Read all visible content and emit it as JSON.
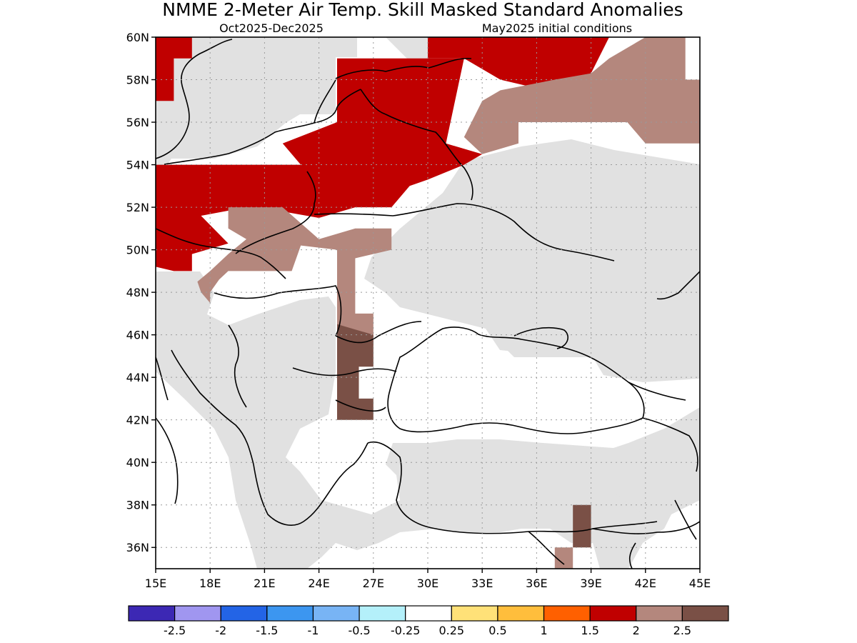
{
  "title": "NMME 2-Meter Air Temp. Skill Masked Standard Anomalies",
  "subtitle_left": "Oct2025-Dec2025",
  "subtitle_right": "May2025 initial conditions",
  "map": {
    "lon_range": [
      15,
      45
    ],
    "lat_range": [
      35,
      60
    ],
    "lat_ticks": [
      {
        "value": 60,
        "label": "60N"
      },
      {
        "value": 58,
        "label": "58N"
      },
      {
        "value": 56,
        "label": "56N"
      },
      {
        "value": 54,
        "label": "54N"
      },
      {
        "value": 52,
        "label": "52N"
      },
      {
        "value": 50,
        "label": "50N"
      },
      {
        "value": 48,
        "label": "48N"
      },
      {
        "value": 46,
        "label": "46N"
      },
      {
        "value": 44,
        "label": "44N"
      },
      {
        "value": 42,
        "label": "42N"
      },
      {
        "value": 40,
        "label": "40N"
      },
      {
        "value": 38,
        "label": "38N"
      },
      {
        "value": 36,
        "label": "36N"
      }
    ],
    "lon_ticks": [
      {
        "value": 15,
        "label": "15E"
      },
      {
        "value": 18,
        "label": "18E"
      },
      {
        "value": 21,
        "label": "21E"
      },
      {
        "value": 24,
        "label": "24E"
      },
      {
        "value": 27,
        "label": "27E"
      },
      {
        "value": 30,
        "label": "30E"
      },
      {
        "value": 33,
        "label": "33E"
      },
      {
        "value": 36,
        "label": "36E"
      },
      {
        "value": 39,
        "label": "39E"
      },
      {
        "value": 42,
        "label": "42E"
      },
      {
        "value": 45,
        "label": "45E"
      }
    ],
    "grid": "dotted",
    "categories": {
      "neutral": "#e1e1e1",
      "anom_2_0": "#c00000",
      "anom_2_5": "#b4877d",
      "anom_3_0": "#7a5046"
    },
    "regions": [
      {
        "name": "red-north-poland-baltics",
        "category": "anom_2_0",
        "points": [
          [
            15,
            60
          ],
          [
            17,
            60
          ],
          [
            17,
            59
          ],
          [
            16,
            59
          ],
          [
            16,
            57
          ],
          [
            15,
            57
          ]
        ]
      },
      {
        "name": "red-central",
        "category": "anom_2_0",
        "points": [
          [
            25,
            59
          ],
          [
            32,
            59
          ],
          [
            31,
            55
          ],
          [
            33,
            54.5
          ],
          [
            32,
            54
          ],
          [
            30,
            53.3
          ],
          [
            29,
            53
          ],
          [
            28,
            52
          ],
          [
            26,
            52
          ],
          [
            24,
            51.5
          ],
          [
            22,
            51.8
          ],
          [
            20,
            52
          ],
          [
            17.5,
            51.6
          ],
          [
            19,
            50.3
          ],
          [
            17,
            49.8
          ],
          [
            17,
            49
          ],
          [
            16,
            49
          ],
          [
            15,
            49.2
          ],
          [
            15,
            54
          ],
          [
            16,
            54
          ],
          [
            23,
            54
          ],
          [
            22,
            55
          ],
          [
            25,
            56
          ]
        ]
      },
      {
        "name": "red-north-russia",
        "category": "anom_2_0",
        "points": [
          [
            30,
            60
          ],
          [
            40,
            60
          ],
          [
            39,
            58.3
          ],
          [
            36.5,
            57.5
          ],
          [
            34,
            58
          ],
          [
            32,
            59
          ],
          [
            30,
            59
          ]
        ]
      },
      {
        "name": "brown-poland-belarus",
        "category": "anom_2_5",
        "points": [
          [
            19,
            52
          ],
          [
            22,
            52
          ],
          [
            24,
            50.5
          ],
          [
            26,
            51
          ],
          [
            28,
            51
          ],
          [
            28,
            50
          ],
          [
            26,
            49.6
          ],
          [
            26,
            47.9
          ],
          [
            25,
            48
          ],
          [
            25,
            50
          ],
          [
            23,
            50.2
          ],
          [
            22.5,
            49
          ],
          [
            21,
            49
          ],
          [
            19,
            49
          ],
          [
            18.5,
            48.6
          ],
          [
            18,
            48
          ],
          [
            18,
            47.5
          ],
          [
            17.5,
            48
          ],
          [
            17.3,
            48.5
          ],
          [
            18,
            49
          ],
          [
            19,
            49.8
          ],
          [
            20,
            50.5
          ],
          [
            19,
            51
          ]
        ]
      },
      {
        "name": "brown-moldova-strip",
        "category": "anom_2_5",
        "points": [
          [
            25,
            48
          ],
          [
            26,
            48
          ],
          [
            26,
            47
          ],
          [
            27,
            47
          ],
          [
            27,
            45.5
          ],
          [
            25,
            45.5
          ]
        ]
      },
      {
        "name": "dark-romania",
        "category": "anom_3_0",
        "points": [
          [
            25,
            46.5
          ],
          [
            27,
            46
          ],
          [
            27,
            44.5
          ],
          [
            26.2,
            44.5
          ],
          [
            26.2,
            43
          ],
          [
            27,
            43
          ],
          [
            27,
            42
          ],
          [
            25,
            42
          ]
        ]
      },
      {
        "name": "brown-russia-east",
        "category": "anom_2_5",
        "points": [
          [
            33,
            57
          ],
          [
            34,
            57.5
          ],
          [
            37,
            58
          ],
          [
            39,
            58.3
          ],
          [
            40,
            59
          ],
          [
            42,
            60
          ],
          [
            44.2,
            60
          ],
          [
            44.2,
            58
          ],
          [
            45,
            58
          ],
          [
            45,
            55
          ],
          [
            42,
            55
          ],
          [
            41,
            56
          ],
          [
            35,
            56
          ],
          [
            35,
            55
          ],
          [
            33,
            54.5
          ],
          [
            32,
            55.3
          ]
        ]
      },
      {
        "name": "dark-turkey-south",
        "category": "anom_3_0",
        "points": [
          [
            38,
            38
          ],
          [
            39,
            38
          ],
          [
            39,
            36
          ],
          [
            38,
            36
          ]
        ]
      },
      {
        "name": "brown-turkey-south",
        "category": "anom_2_5",
        "points": [
          [
            37,
            36
          ],
          [
            38,
            36
          ],
          [
            38,
            35
          ],
          [
            37,
            35
          ]
        ]
      }
    ]
  },
  "legend": {
    "colors": [
      "#3c28b4",
      "#a096f0",
      "#2364e6",
      "#3c96f0",
      "#78b4f5",
      "#b4f0fa",
      "#ffffff",
      "#ffe178",
      "#ffbe3c",
      "#ff6000",
      "#c00000",
      "#b4877d",
      "#7a5046"
    ],
    "labels": [
      "-2.5",
      "-2",
      "-1.5",
      "-1",
      "-0.5",
      "-0.25",
      "0.25",
      "0.5",
      "1",
      "1.5",
      "2",
      "2.5"
    ]
  }
}
